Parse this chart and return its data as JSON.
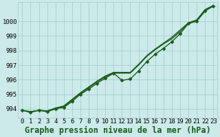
{
  "title": "Graphe pression niveau de la mer (hPa)",
  "background_color": "#cceaea",
  "grid_color": "#9ec8c8",
  "line_color": "#1a5c1a",
  "xlim": [
    -0.5,
    23.5
  ],
  "ylim": [
    993.4,
    1001.3
  ],
  "yticks": [
    994,
    995,
    996,
    997,
    998,
    999,
    1000
  ],
  "xticks": [
    0,
    1,
    2,
    3,
    4,
    5,
    6,
    7,
    8,
    9,
    10,
    11,
    12,
    13,
    14,
    15,
    16,
    17,
    18,
    19,
    20,
    21,
    22,
    23
  ],
  "series_plain": [
    [
      993.9,
      993.8,
      993.9,
      993.85,
      994.05,
      994.15,
      994.6,
      995.05,
      995.45,
      995.85,
      996.2,
      996.45,
      996.45,
      996.45,
      997.0,
      997.6,
      998.05,
      998.45,
      998.8,
      999.3,
      999.85,
      1000.05,
      1000.75,
      1001.05
    ],
    [
      993.9,
      993.8,
      993.9,
      993.85,
      994.05,
      994.2,
      994.65,
      995.1,
      995.5,
      995.9,
      996.25,
      996.5,
      996.5,
      996.5,
      997.05,
      997.65,
      998.1,
      998.5,
      998.9,
      999.4,
      999.9,
      1000.1,
      1000.8,
      1001.1
    ]
  ],
  "series_marker": [
    993.9,
    993.75,
    993.9,
    993.8,
    994.0,
    994.1,
    994.5,
    995.0,
    995.35,
    995.75,
    996.1,
    996.45,
    995.95,
    996.05,
    996.6,
    997.25,
    997.75,
    998.15,
    998.6,
    999.15,
    999.85,
    1000.0,
    1000.7,
    1001.05
  ],
  "title_fontsize": 8.5,
  "tick_fontsize": 6.5,
  "linewidth": 1.0,
  "markersize": 2.5
}
